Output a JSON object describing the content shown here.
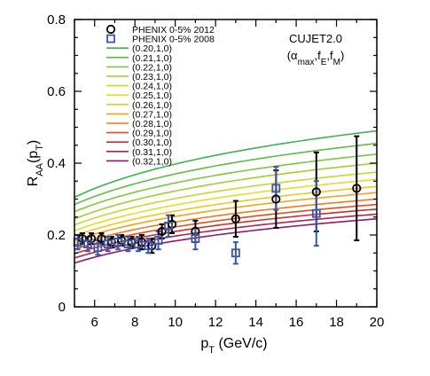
{
  "chart_data": {
    "type": "line",
    "xlim": [
      5,
      20
    ],
    "ylim": [
      0,
      0.8
    ],
    "x_ticks": [
      "6",
      "8",
      "10",
      "12",
      "14",
      "16",
      "18",
      "20"
    ],
    "y_ticks": [
      "0",
      "0.2",
      "0.4",
      "0.6",
      "0.8"
    ],
    "grid": false,
    "legend_position": "top-left",
    "xlabel": {
      "main": "p",
      "sub": "T",
      "rest": " (GeV/c)"
    },
    "ylabel": {
      "main": "R",
      "sub": "AA",
      "mid": "(p",
      "sub2": "T",
      "end": ")"
    },
    "annotation": {
      "line1": "CUJET2.0",
      "line2": {
        "open": "(α",
        "sub1": "max",
        "sep1": ",f",
        "sub2": "E",
        "sep2": ",f",
        "sub3": "M",
        "close": ")"
      }
    },
    "markers": [
      {
        "name": "PHENIX 0-5% 2012",
        "marker": "circle",
        "color": "#000000",
        "points": [
          {
            "x": 5.3,
            "y": 0.19,
            "err": 0.015
          },
          {
            "x": 5.75,
            "y": 0.19,
            "err": 0.015
          },
          {
            "x": 6.25,
            "y": 0.19,
            "err": 0.015
          },
          {
            "x": 6.75,
            "y": 0.18,
            "err": 0.015
          },
          {
            "x": 7.25,
            "y": 0.185,
            "err": 0.015
          },
          {
            "x": 7.75,
            "y": 0.18,
            "err": 0.015
          },
          {
            "x": 8.25,
            "y": 0.18,
            "err": 0.02
          },
          {
            "x": 8.75,
            "y": 0.17,
            "err": 0.02
          },
          {
            "x": 9.25,
            "y": 0.21,
            "err": 0.02
          },
          {
            "x": 9.75,
            "y": 0.23,
            "err": 0.025
          },
          {
            "x": 11.0,
            "y": 0.21,
            "err": 0.03
          },
          {
            "x": 13.0,
            "y": 0.245,
            "err": 0.05
          },
          {
            "x": 15.0,
            "y": 0.3,
            "err": 0.08
          },
          {
            "x": 17.0,
            "y": 0.32,
            "err": 0.11
          },
          {
            "x": 19.0,
            "y": 0.33,
            "err": 0.145
          }
        ]
      },
      {
        "name": "PHENIX 0-5% 2008",
        "marker": "square",
        "color": "#3a57a7",
        "points": [
          {
            "x": 5.25,
            "y": 0.18,
            "err": 0.02
          },
          {
            "x": 5.75,
            "y": 0.175,
            "err": 0.02
          },
          {
            "x": 6.25,
            "y": 0.165,
            "err": 0.02
          },
          {
            "x": 6.75,
            "y": 0.175,
            "err": 0.02
          },
          {
            "x": 7.25,
            "y": 0.18,
            "err": 0.02
          },
          {
            "x": 7.75,
            "y": 0.175,
            "err": 0.02
          },
          {
            "x": 8.25,
            "y": 0.175,
            "err": 0.02
          },
          {
            "x": 8.75,
            "y": 0.17,
            "err": 0.02
          },
          {
            "x": 9.25,
            "y": 0.185,
            "err": 0.025
          },
          {
            "x": 9.75,
            "y": 0.225,
            "err": 0.03
          },
          {
            "x": 11.0,
            "y": 0.19,
            "err": 0.03
          },
          {
            "x": 13.0,
            "y": 0.15,
            "err": 0.03
          },
          {
            "x": 15.0,
            "y": 0.33,
            "err": 0.06
          },
          {
            "x": 17.0,
            "y": 0.26,
            "err": 0.09
          }
        ]
      }
    ],
    "series": [
      {
        "name": "(0.20,1,0)",
        "color": "#3cb44b",
        "y_at_5": 0.305,
        "y_at_20": 0.49
      },
      {
        "name": "(0.21,1,0)",
        "color": "#5dbf3f",
        "y_at_5": 0.285,
        "y_at_20": 0.455
      },
      {
        "name": "(0.22,1,0)",
        "color": "#7cc83a",
        "y_at_5": 0.265,
        "y_at_20": 0.425
      },
      {
        "name": "(0.23,1,0)",
        "color": "#a0cf34",
        "y_at_5": 0.245,
        "y_at_20": 0.4
      },
      {
        "name": "(0.24,1,0)",
        "color": "#c4d82e",
        "y_at_5": 0.228,
        "y_at_20": 0.375
      },
      {
        "name": "(0.25,1,0)",
        "color": "#e6dc25",
        "y_at_5": 0.212,
        "y_at_20": 0.355
      },
      {
        "name": "(0.26,1,0)",
        "color": "#f3c61e",
        "y_at_5": 0.198,
        "y_at_20": 0.335
      },
      {
        "name": "(0.27,1,0)",
        "color": "#f5a21a",
        "y_at_5": 0.185,
        "y_at_20": 0.318
      },
      {
        "name": "(0.28,1,0)",
        "color": "#f17a19",
        "y_at_5": 0.172,
        "y_at_20": 0.3
      },
      {
        "name": "(0.29,1,0)",
        "color": "#e54b1e",
        "y_at_5": 0.16,
        "y_at_20": 0.285
      },
      {
        "name": "(0.30,1,0)",
        "color": "#d22b2b",
        "y_at_5": 0.148,
        "y_at_20": 0.272
      },
      {
        "name": "(0.31,1,0)",
        "color": "#b0214f",
        "y_at_5": 0.136,
        "y_at_20": 0.258
      },
      {
        "name": "(0.32,1,0)",
        "color": "#8e1a6e",
        "y_at_5": 0.122,
        "y_at_20": 0.245
      }
    ]
  }
}
